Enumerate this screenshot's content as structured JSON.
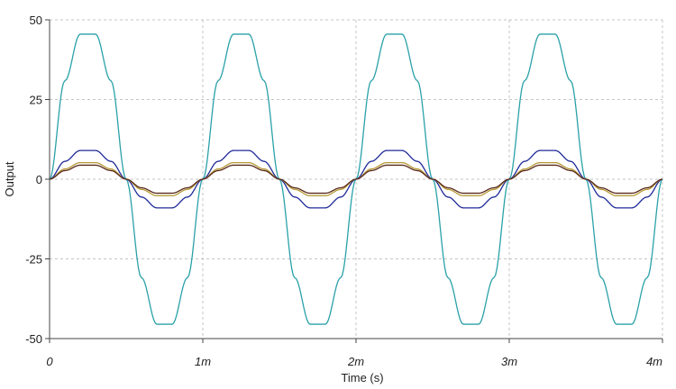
{
  "chart_data": {
    "type": "line",
    "xlabel": "Time (s)",
    "ylabel": "Output",
    "xlim": [
      0,
      0.004
    ],
    "ylim": [
      -50,
      50
    ],
    "x_ticks": [
      {
        "value": 0,
        "label": "0"
      },
      {
        "value": 0.001,
        "label": "1m"
      },
      {
        "value": 0.002,
        "label": "2m"
      },
      {
        "value": 0.003,
        "label": "3m"
      },
      {
        "value": 0.004,
        "label": "4m"
      }
    ],
    "y_ticks": [
      {
        "value": 50,
        "label": "50"
      },
      {
        "value": 25,
        "label": "25"
      },
      {
        "value": 0,
        "label": "0"
      },
      {
        "value": -25,
        "label": "-25"
      },
      {
        "value": -50,
        "label": "-50"
      }
    ],
    "grid": true,
    "x": [
      0,
      0.0001,
      0.0002,
      0.0003,
      0.0004,
      0.0005,
      0.0006,
      0.0007,
      0.0008,
      0.0009,
      0.001,
      0.0011,
      0.0012,
      0.0013,
      0.0014,
      0.0015,
      0.0016,
      0.0017,
      0.0018,
      0.0019,
      0.002,
      0.0021,
      0.0022,
      0.0023,
      0.0024,
      0.0025,
      0.0026,
      0.0027,
      0.0028,
      0.0029,
      0.003,
      0.0031,
      0.0032,
      0.0033,
      0.0034,
      0.0035,
      0.0036,
      0.0037,
      0.0038,
      0.0039,
      0.004
    ],
    "series": [
      {
        "color": "#2aa1a8",
        "values": [
          0,
          30.9,
          45.5,
          45.5,
          30.9,
          0,
          -30.9,
          -45.5,
          -45.5,
          -30.9,
          0,
          30.9,
          45.5,
          45.5,
          30.9,
          0,
          -30.9,
          -45.5,
          -45.5,
          -30.9,
          0,
          30.9,
          45.5,
          45.5,
          30.9,
          0,
          -30.9,
          -45.5,
          -45.5,
          -30.9,
          0,
          30.9,
          45.5,
          45.5,
          30.9,
          0,
          -30.9,
          -45.5,
          -45.5,
          -30.9,
          0
        ]
      },
      {
        "color": "#1f2a99",
        "values": [
          0,
          5.6,
          9.0,
          9.0,
          5.6,
          0,
          -5.6,
          -9.0,
          -9.0,
          -5.6,
          0,
          5.6,
          9.0,
          9.0,
          5.6,
          0,
          -5.6,
          -9.0,
          -9.0,
          -5.6,
          0,
          5.6,
          9.0,
          9.0,
          5.6,
          0,
          -5.6,
          -9.0,
          -9.0,
          -5.6,
          0,
          5.6,
          9.0,
          9.0,
          5.6,
          0,
          -5.6,
          -9.0,
          -9.0,
          -5.6,
          0
        ]
      },
      {
        "color": "#b59a35",
        "values": [
          0,
          3.2,
          5.2,
          5.2,
          3.2,
          0,
          -3.2,
          -5.2,
          -5.2,
          -3.2,
          0,
          3.2,
          5.2,
          5.2,
          3.2,
          0,
          -3.2,
          -5.2,
          -5.2,
          -3.2,
          0,
          3.2,
          5.2,
          5.2,
          3.2,
          0,
          -3.2,
          -5.2,
          -5.2,
          -3.2,
          0,
          3.2,
          5.2,
          5.2,
          3.2,
          0,
          -3.2,
          -5.2,
          -5.2,
          -3.2,
          0
        ]
      },
      {
        "color": "#5a2a1c",
        "values": [
          0,
          2.7,
          4.4,
          4.4,
          2.7,
          0,
          -2.7,
          -4.4,
          -4.4,
          -2.7,
          0,
          2.7,
          4.4,
          4.4,
          2.7,
          0,
          -2.7,
          -4.4,
          -4.4,
          -2.7,
          0,
          2.7,
          4.4,
          4.4,
          2.7,
          0,
          -2.7,
          -4.4,
          -4.4,
          -2.7,
          0,
          2.7,
          4.4,
          4.4,
          2.7,
          0,
          -2.7,
          -4.4,
          -4.4,
          -2.7,
          0
        ]
      }
    ]
  }
}
